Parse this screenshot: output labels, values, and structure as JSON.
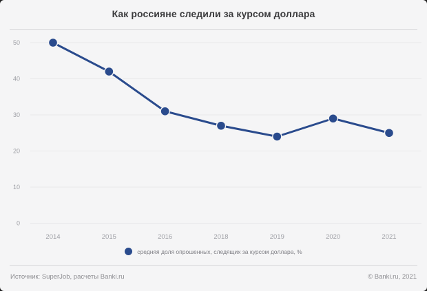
{
  "chart_data": {
    "type": "line",
    "title": "Как россияне следили за курсом доллара",
    "categories": [
      "2014",
      "2015",
      "2016",
      "2018",
      "2019",
      "2020",
      "2021"
    ],
    "values": [
      50,
      42,
      31,
      27,
      24,
      29,
      25
    ],
    "legend_label": "средняя доля опрошенных, следящих за курсом доллара, %",
    "legend_position": "bottom",
    "ylim": [
      0,
      50
    ],
    "yticks": [
      0,
      10,
      20,
      30,
      40,
      50
    ],
    "grid": true,
    "line_color": "#2a4b8d",
    "point_color": "#2a4b8d",
    "grid_color": "#e9e9eb",
    "tick_label_color": "#9fa0a6",
    "background_color": "#f5f5f6"
  },
  "footer": {
    "source": "Источник: SuperJob, расчеты Banki.ru",
    "copyright": "© Banki.ru, 2021"
  }
}
